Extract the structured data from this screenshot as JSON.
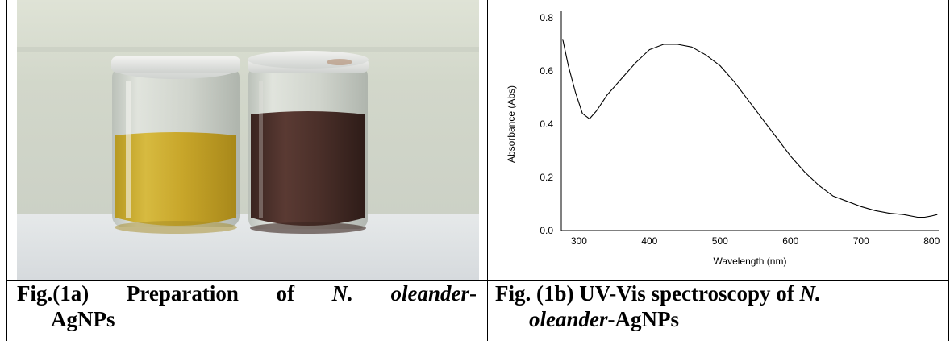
{
  "figure_a": {
    "caption": {
      "w1": "Fig.(1a)",
      "w2": "Preparation",
      "w3": "of",
      "w4_italic": "N.",
      "w5_italic": "oleander",
      "w5_suffix": "-",
      "line2": "AgNPs"
    }
  },
  "figure_b": {
    "caption": {
      "line1_plain": "Fig. (1b) UV-Vis spectroscopy of ",
      "line1_italic": "N.",
      "line2_italic": "oleander",
      "line2_plain": "-AgNPs"
    }
  },
  "chart_data": {
    "type": "line",
    "title": "",
    "xlabel": "Wavelength (nm)",
    "ylabel": "Absorbance (Abs)",
    "xlim": [
      275,
      810
    ],
    "ylim": [
      0.0,
      0.8
    ],
    "xticks": [
      "300",
      "400",
      "500",
      "600",
      "700",
      "800"
    ],
    "yticks": [
      "0.0",
      "0.2",
      "0.4",
      "0.6",
      "0.8"
    ],
    "grid": false,
    "legend": "none",
    "series": [
      {
        "color": "#000000",
        "x": [
          277,
          285,
          295,
          305,
          315,
          325,
          340,
          360,
          380,
          400,
          420,
          440,
          460,
          480,
          500,
          520,
          540,
          560,
          580,
          600,
          620,
          640,
          660,
          680,
          700,
          720,
          740,
          760,
          780,
          790,
          800,
          808
        ],
        "y": [
          0.72,
          0.62,
          0.52,
          0.44,
          0.42,
          0.45,
          0.51,
          0.57,
          0.63,
          0.68,
          0.7,
          0.7,
          0.69,
          0.66,
          0.62,
          0.56,
          0.49,
          0.42,
          0.35,
          0.28,
          0.22,
          0.17,
          0.13,
          0.11,
          0.09,
          0.075,
          0.065,
          0.06,
          0.05,
          0.05,
          0.055,
          0.06
        ]
      }
    ]
  }
}
